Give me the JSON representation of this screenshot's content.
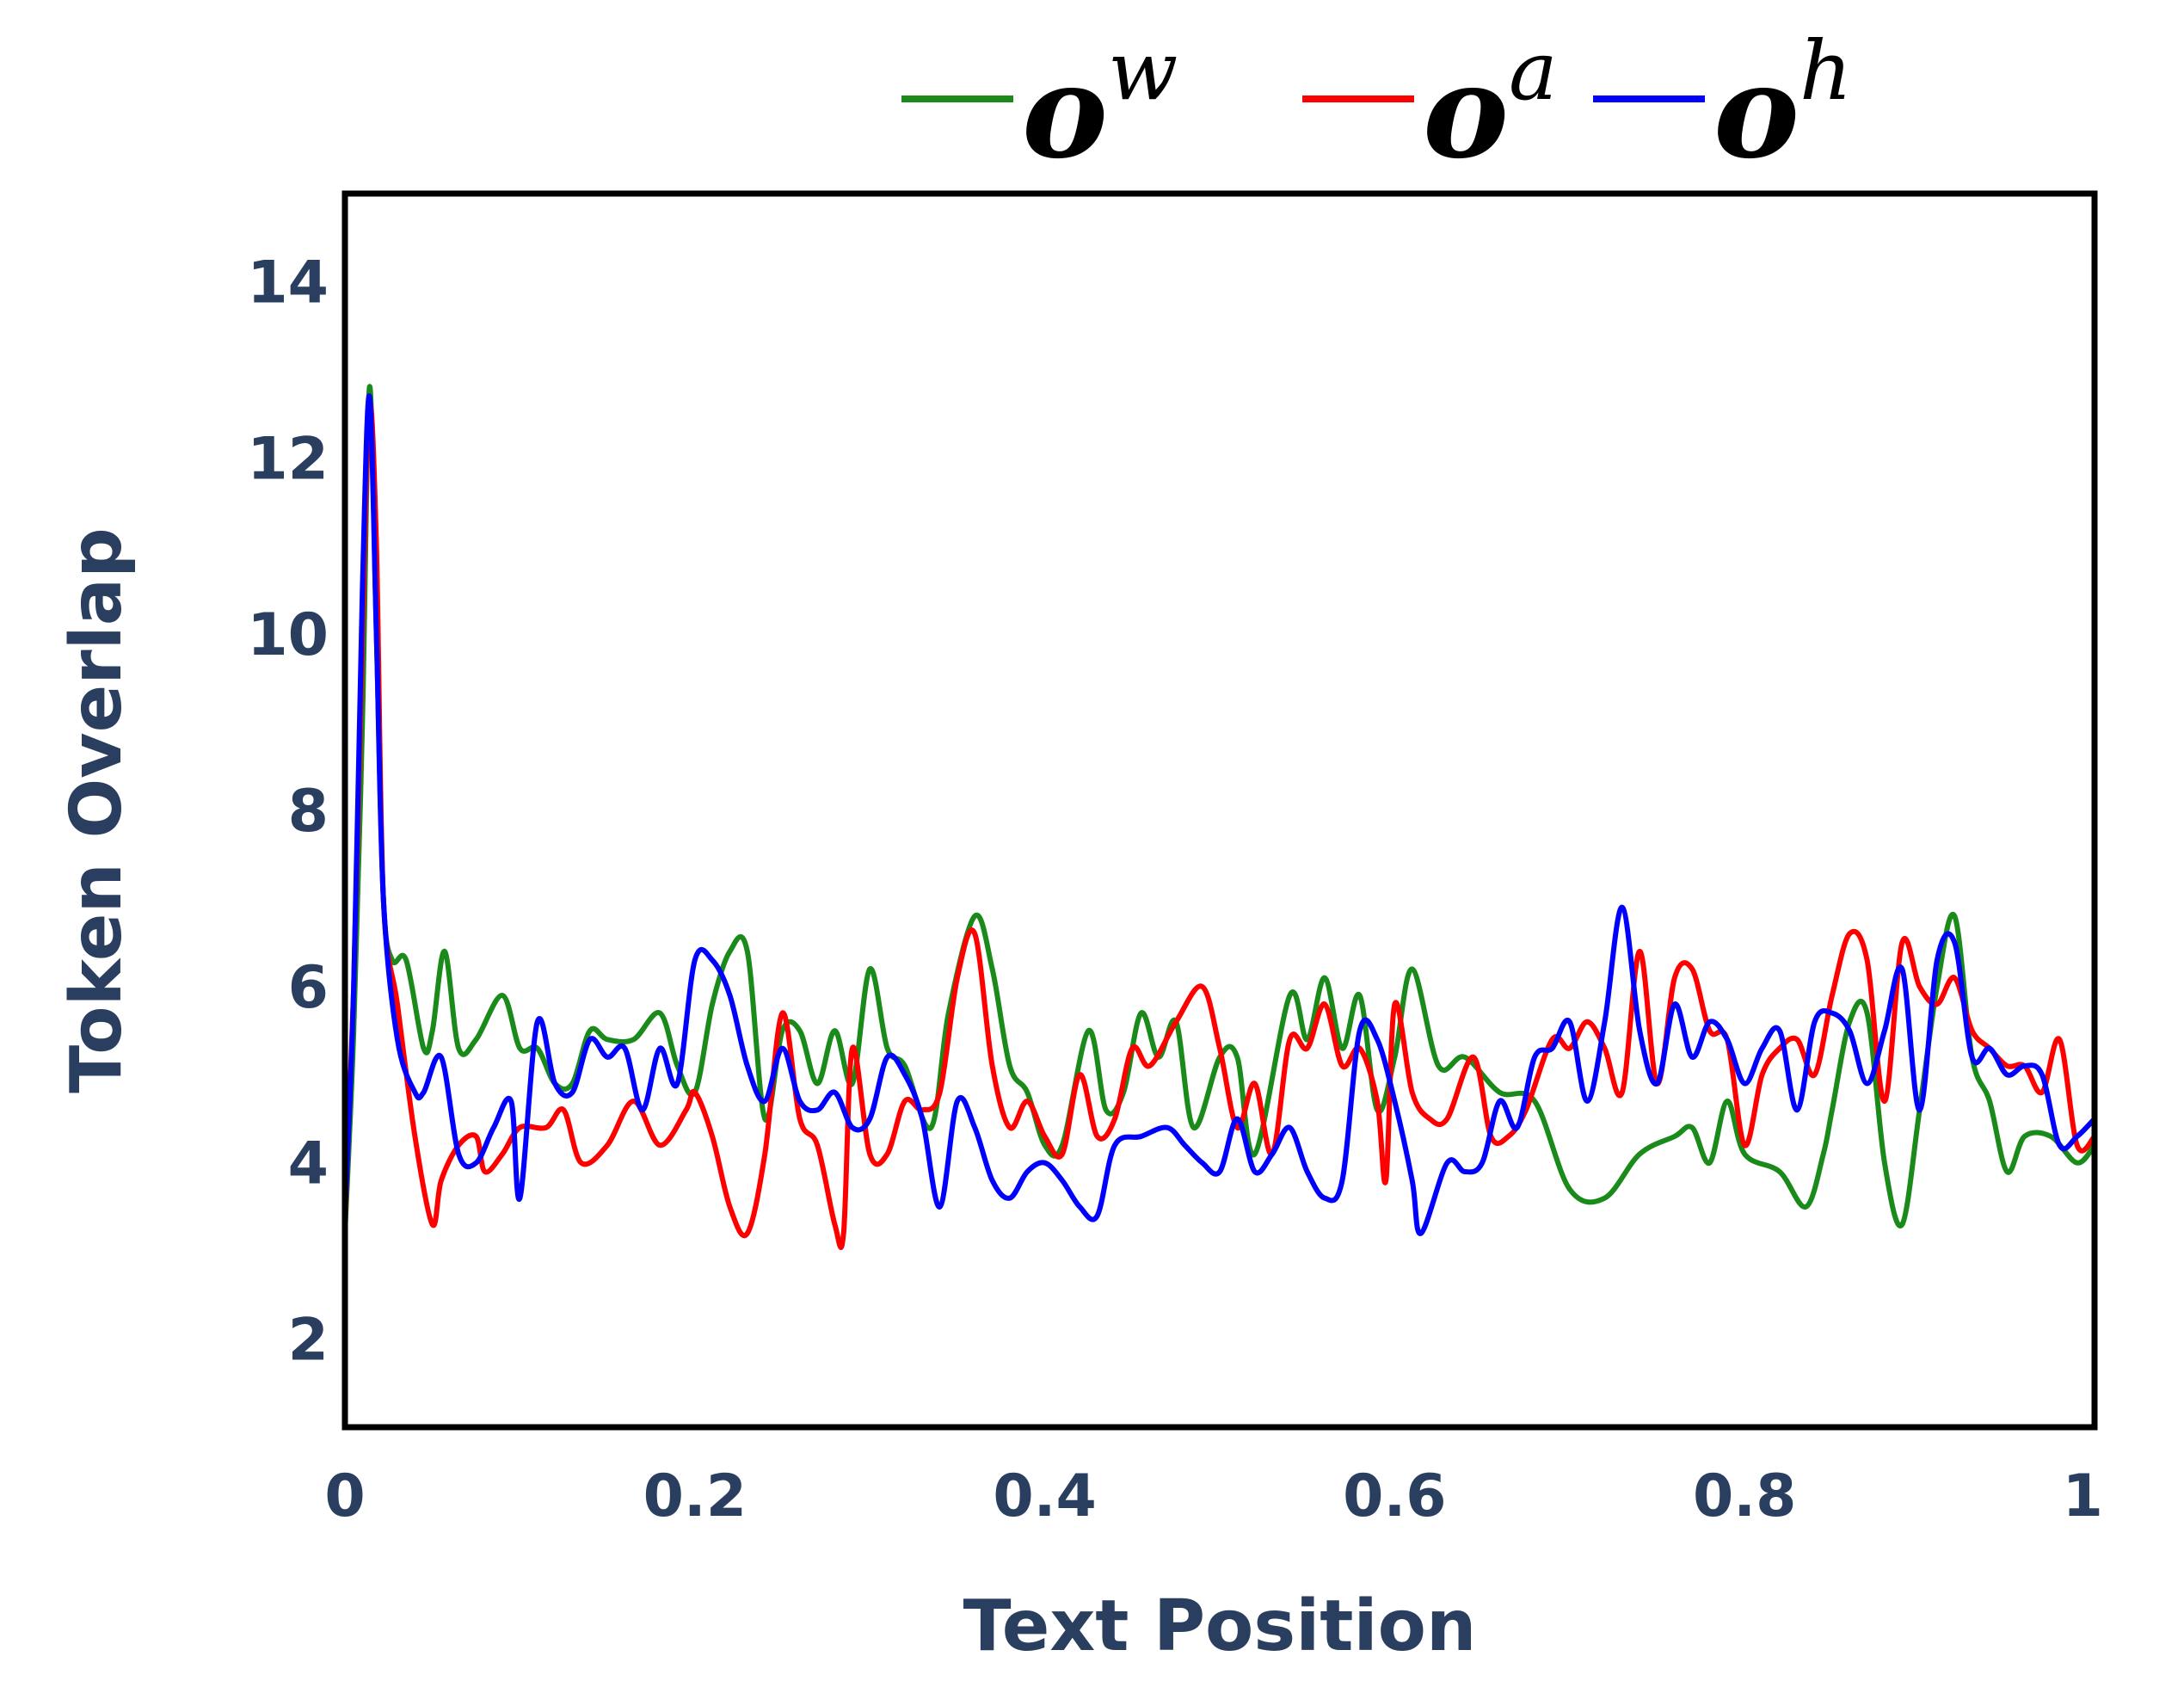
{
  "chart_data": {
    "type": "line",
    "xlabel": "Text Position",
    "ylabel": "Token Overlap",
    "xlim": [
      0,
      1
    ],
    "ylim": [
      1,
      15
    ],
    "x_ticks": [
      0,
      0.2,
      0.4,
      0.6,
      0.8,
      1
    ],
    "x_tick_labels": [
      "0",
      "0.2",
      "0.4",
      "0.6",
      "0.8",
      "1"
    ],
    "y_ticks": [
      2,
      4,
      6,
      8,
      10,
      12,
      14
    ],
    "y_tick_labels": [
      "2",
      "4",
      "6",
      "8",
      "10",
      "12",
      "14"
    ],
    "grid": false,
    "legend_position": "top",
    "series": [
      {
        "legend_base": "o",
        "legend_sup": "w",
        "color": "#1a8a1a",
        "points": [
          [
            0,
            3.2
          ],
          [
            0.005,
            5.5
          ],
          [
            0.01,
            9
          ],
          [
            0.014,
            12.8
          ],
          [
            0.018,
            10
          ],
          [
            0.022,
            7
          ],
          [
            0.027,
            6.3
          ],
          [
            0.035,
            6.3
          ],
          [
            0.045,
            5.3
          ],
          [
            0.05,
            5.5
          ],
          [
            0.057,
            6.4
          ],
          [
            0.065,
            5.3
          ],
          [
            0.075,
            5.4
          ],
          [
            0.09,
            5.9
          ],
          [
            0.1,
            5.3
          ],
          [
            0.11,
            5.3
          ],
          [
            0.12,
            4.9
          ],
          [
            0.13,
            4.9
          ],
          [
            0.14,
            5.5
          ],
          [
            0.15,
            5.4
          ],
          [
            0.165,
            5.4
          ],
          [
            0.18,
            5.7
          ],
          [
            0.19,
            5.1
          ],
          [
            0.2,
            4.8
          ],
          [
            0.21,
            5.8
          ],
          [
            0.22,
            6.4
          ],
          [
            0.23,
            6.4
          ],
          [
            0.24,
            4.5
          ],
          [
            0.25,
            5.5
          ],
          [
            0.26,
            5.5
          ],
          [
            0.27,
            4.9
          ],
          [
            0.28,
            5.5
          ],
          [
            0.29,
            4.9
          ],
          [
            0.3,
            6.2
          ],
          [
            0.31,
            5.3
          ],
          [
            0.32,
            5.1
          ],
          [
            0.335,
            4.4
          ],
          [
            0.345,
            5.7
          ],
          [
            0.36,
            6.8
          ],
          [
            0.37,
            6.2
          ],
          [
            0.38,
            5.1
          ],
          [
            0.39,
            4.8
          ],
          [
            0.4,
            4.2
          ],
          [
            0.41,
            4.2
          ],
          [
            0.425,
            5.5
          ],
          [
            0.435,
            4.6
          ],
          [
            0.445,
            4.8
          ],
          [
            0.455,
            5.7
          ],
          [
            0.465,
            5.2
          ],
          [
            0.475,
            5.6
          ],
          [
            0.485,
            4.4
          ],
          [
            0.5,
            5.2
          ],
          [
            0.51,
            5.2
          ],
          [
            0.52,
            4.1
          ],
          [
            0.54,
            5.9
          ],
          [
            0.55,
            5.4
          ],
          [
            0.56,
            6.1
          ],
          [
            0.57,
            5.3
          ],
          [
            0.58,
            5.9
          ],
          [
            0.59,
            4.6
          ],
          [
            0.6,
            5.2
          ],
          [
            0.61,
            6.2
          ],
          [
            0.625,
            5.1
          ],
          [
            0.64,
            5.2
          ],
          [
            0.66,
            4.8
          ],
          [
            0.68,
            4.7
          ],
          [
            0.7,
            3.7
          ],
          [
            0.72,
            3.6
          ],
          [
            0.74,
            4.1
          ],
          [
            0.76,
            4.3
          ],
          [
            0.77,
            4.4
          ],
          [
            0.78,
            4.0
          ],
          [
            0.79,
            4.7
          ],
          [
            0.8,
            4.1
          ],
          [
            0.82,
            3.9
          ],
          [
            0.835,
            3.5
          ],
          [
            0.845,
            4.1
          ],
          [
            0.85,
            4.6
          ],
          [
            0.86,
            5.6
          ],
          [
            0.87,
            5.7
          ],
          [
            0.88,
            4.0
          ],
          [
            0.89,
            3.3
          ],
          [
            0.9,
            4.6
          ],
          [
            0.91,
            6.0
          ],
          [
            0.92,
            6.8
          ],
          [
            0.93,
            5.2
          ],
          [
            0.94,
            4.7
          ],
          [
            0.95,
            3.9
          ],
          [
            0.96,
            4.3
          ],
          [
            0.975,
            4.3
          ],
          [
            0.99,
            4.0
          ],
          [
            1.0,
            4.2
          ]
        ]
      },
      {
        "legend_base": "o",
        "legend_sup": "a",
        "color": "#ff0000",
        "points": [
          [
            0,
            3.3
          ],
          [
            0.005,
            6
          ],
          [
            0.01,
            10
          ],
          [
            0.014,
            12.6
          ],
          [
            0.018,
            11
          ],
          [
            0.022,
            7
          ],
          [
            0.03,
            5.8
          ],
          [
            0.04,
            4.3
          ],
          [
            0.05,
            3.3
          ],
          [
            0.055,
            3.8
          ],
          [
            0.065,
            4.2
          ],
          [
            0.075,
            4.3
          ],
          [
            0.08,
            3.9
          ],
          [
            0.09,
            4.1
          ],
          [
            0.1,
            4.4
          ],
          [
            0.115,
            4.4
          ],
          [
            0.125,
            4.6
          ],
          [
            0.135,
            4.0
          ],
          [
            0.15,
            4.2
          ],
          [
            0.165,
            4.7
          ],
          [
            0.18,
            4.2
          ],
          [
            0.195,
            4.6
          ],
          [
            0.2,
            4.8
          ],
          [
            0.21,
            4.3
          ],
          [
            0.22,
            3.5
          ],
          [
            0.23,
            3.2
          ],
          [
            0.24,
            4.1
          ],
          [
            0.25,
            5.7
          ],
          [
            0.26,
            4.5
          ],
          [
            0.27,
            4.2
          ],
          [
            0.28,
            3.3
          ],
          [
            0.285,
            3.2
          ],
          [
            0.29,
            5.3
          ],
          [
            0.3,
            4.1
          ],
          [
            0.31,
            4.1
          ],
          [
            0.32,
            4.7
          ],
          [
            0.33,
            4.6
          ],
          [
            0.34,
            4.8
          ],
          [
            0.35,
            6.1
          ],
          [
            0.36,
            6.6
          ],
          [
            0.37,
            5.1
          ],
          [
            0.38,
            4.4
          ],
          [
            0.39,
            4.7
          ],
          [
            0.4,
            4.3
          ],
          [
            0.41,
            4.1
          ],
          [
            0.42,
            5.0
          ],
          [
            0.43,
            4.3
          ],
          [
            0.44,
            4.5
          ],
          [
            0.45,
            5.3
          ],
          [
            0.46,
            5.1
          ],
          [
            0.475,
            5.6
          ],
          [
            0.49,
            6.0
          ],
          [
            0.5,
            5.3
          ],
          [
            0.51,
            4.4
          ],
          [
            0.52,
            4.9
          ],
          [
            0.53,
            4.1
          ],
          [
            0.54,
            5.4
          ],
          [
            0.55,
            5.3
          ],
          [
            0.56,
            5.8
          ],
          [
            0.57,
            5.1
          ],
          [
            0.58,
            5.3
          ],
          [
            0.59,
            4.7
          ],
          [
            0.595,
            3.8
          ],
          [
            0.6,
            5.8
          ],
          [
            0.61,
            4.8
          ],
          [
            0.62,
            4.5
          ],
          [
            0.63,
            4.5
          ],
          [
            0.645,
            5.2
          ],
          [
            0.655,
            4.3
          ],
          [
            0.665,
            4.3
          ],
          [
            0.675,
            4.6
          ],
          [
            0.69,
            5.4
          ],
          [
            0.7,
            5.3
          ],
          [
            0.71,
            5.6
          ],
          [
            0.72,
            5.3
          ],
          [
            0.73,
            4.8
          ],
          [
            0.74,
            6.4
          ],
          [
            0.75,
            4.9
          ],
          [
            0.76,
            6.1
          ],
          [
            0.77,
            6.2
          ],
          [
            0.78,
            5.5
          ],
          [
            0.79,
            5.4
          ],
          [
            0.8,
            4.2
          ],
          [
            0.81,
            5.0
          ],
          [
            0.82,
            5.3
          ],
          [
            0.83,
            5.4
          ],
          [
            0.84,
            5.0
          ],
          [
            0.85,
            5.9
          ],
          [
            0.86,
            6.6
          ],
          [
            0.87,
            6.3
          ],
          [
            0.88,
            4.7
          ],
          [
            0.89,
            6.5
          ],
          [
            0.9,
            6.0
          ],
          [
            0.91,
            5.8
          ],
          [
            0.92,
            6.1
          ],
          [
            0.93,
            5.5
          ],
          [
            0.94,
            5.3
          ],
          [
            0.95,
            5.1
          ],
          [
            0.96,
            5.1
          ],
          [
            0.97,
            4.8
          ],
          [
            0.98,
            5.4
          ],
          [
            0.99,
            4.2
          ],
          [
            1.0,
            4.3
          ]
        ]
      },
      {
        "legend_base": "o",
        "legend_sup": "h",
        "color": "#0000ff",
        "points": [
          [
            0,
            3.4
          ],
          [
            0.005,
            6
          ],
          [
            0.01,
            10.5
          ],
          [
            0.014,
            12.7
          ],
          [
            0.018,
            10
          ],
          [
            0.022,
            7
          ],
          [
            0.03,
            5.4
          ],
          [
            0.04,
            4.8
          ],
          [
            0.045,
            4.8
          ],
          [
            0.055,
            5.2
          ],
          [
            0.065,
            4.1
          ],
          [
            0.075,
            4.0
          ],
          [
            0.085,
            4.4
          ],
          [
            0.095,
            4.7
          ],
          [
            0.1,
            3.6
          ],
          [
            0.11,
            5.6
          ],
          [
            0.12,
            4.9
          ],
          [
            0.13,
            4.8
          ],
          [
            0.14,
            5.4
          ],
          [
            0.15,
            5.2
          ],
          [
            0.16,
            5.3
          ],
          [
            0.17,
            4.6
          ],
          [
            0.18,
            5.3
          ],
          [
            0.19,
            4.9
          ],
          [
            0.2,
            6.3
          ],
          [
            0.21,
            6.3
          ],
          [
            0.22,
            5.9
          ],
          [
            0.23,
            5.1
          ],
          [
            0.24,
            4.7
          ],
          [
            0.25,
            5.3
          ],
          [
            0.26,
            4.7
          ],
          [
            0.27,
            4.6
          ],
          [
            0.28,
            4.8
          ],
          [
            0.29,
            4.4
          ],
          [
            0.3,
            4.5
          ],
          [
            0.31,
            5.2
          ],
          [
            0.32,
            5.0
          ],
          [
            0.33,
            4.5
          ],
          [
            0.34,
            3.5
          ],
          [
            0.35,
            4.7
          ],
          [
            0.36,
            4.4
          ],
          [
            0.37,
            3.8
          ],
          [
            0.38,
            3.6
          ],
          [
            0.39,
            3.9
          ],
          [
            0.4,
            4.0
          ],
          [
            0.41,
            3.8
          ],
          [
            0.42,
            3.5
          ],
          [
            0.43,
            3.4
          ],
          [
            0.44,
            4.2
          ],
          [
            0.455,
            4.3
          ],
          [
            0.47,
            4.4
          ],
          [
            0.48,
            4.2
          ],
          [
            0.49,
            4.0
          ],
          [
            0.5,
            3.9
          ],
          [
            0.51,
            4.5
          ],
          [
            0.52,
            3.9
          ],
          [
            0.53,
            4.1
          ],
          [
            0.54,
            4.4
          ],
          [
            0.55,
            3.9
          ],
          [
            0.56,
            3.6
          ],
          [
            0.57,
            3.8
          ],
          [
            0.58,
            5.5
          ],
          [
            0.59,
            5.4
          ],
          [
            0.6,
            4.7
          ],
          [
            0.61,
            3.8
          ],
          [
            0.615,
            3.2
          ],
          [
            0.63,
            4.0
          ],
          [
            0.64,
            3.9
          ],
          [
            0.65,
            4.0
          ],
          [
            0.66,
            4.7
          ],
          [
            0.67,
            4.4
          ],
          [
            0.68,
            5.2
          ],
          [
            0.69,
            5.3
          ],
          [
            0.7,
            5.6
          ],
          [
            0.71,
            4.7
          ],
          [
            0.72,
            5.6
          ],
          [
            0.73,
            6.9
          ],
          [
            0.74,
            5.5
          ],
          [
            0.75,
            4.9
          ],
          [
            0.76,
            5.8
          ],
          [
            0.77,
            5.2
          ],
          [
            0.78,
            5.6
          ],
          [
            0.79,
            5.4
          ],
          [
            0.8,
            4.9
          ],
          [
            0.81,
            5.3
          ],
          [
            0.82,
            5.5
          ],
          [
            0.83,
            4.6
          ],
          [
            0.84,
            5.6
          ],
          [
            0.85,
            5.7
          ],
          [
            0.86,
            5.5
          ],
          [
            0.87,
            4.9
          ],
          [
            0.88,
            5.5
          ],
          [
            0.89,
            6.2
          ],
          [
            0.9,
            4.6
          ],
          [
            0.91,
            6.3
          ],
          [
            0.92,
            6.5
          ],
          [
            0.93,
            5.2
          ],
          [
            0.94,
            5.3
          ],
          [
            0.95,
            5.0
          ],
          [
            0.96,
            5.1
          ],
          [
            0.97,
            5.0
          ],
          [
            0.98,
            4.2
          ],
          [
            0.99,
            4.3
          ],
          [
            1.0,
            4.5
          ]
        ]
      }
    ]
  }
}
